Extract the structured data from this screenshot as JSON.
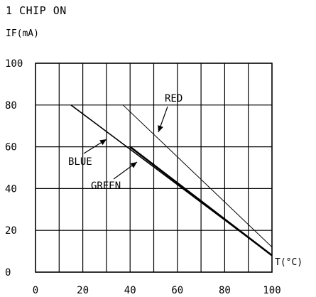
{
  "chart_data": {
    "type": "line",
    "title": "1 CHIP ON",
    "ylabel": "IF(mA)",
    "xlabel": "T(°C)",
    "xlim": [
      0,
      100
    ],
    "ylim": [
      0,
      100
    ],
    "x_ticks": [
      0,
      20,
      40,
      60,
      80,
      100
    ],
    "y_ticks": [
      0,
      20,
      40,
      60,
      80,
      100
    ],
    "x_tick_labels": [
      "0",
      "20",
      "40",
      "60",
      "80",
      "100"
    ],
    "y_tick_labels": [
      "0",
      "20",
      "40",
      "60",
      "80",
      "100"
    ],
    "grid": true,
    "series": [
      {
        "name": "RED",
        "x": [
          37,
          100
        ],
        "y": [
          80,
          12
        ],
        "stroke": "thin"
      },
      {
        "name": "BLUE",
        "x": [
          15,
          100
        ],
        "y": [
          80,
          8
        ],
        "stroke": "medium"
      },
      {
        "name": "GREEN",
        "x": [
          40,
          100
        ],
        "y": [
          60,
          8
        ],
        "stroke": "thick"
      }
    ],
    "annotations": [
      {
        "label": "RED"
      },
      {
        "label": "BLUE"
      },
      {
        "label": "GREEN"
      }
    ]
  }
}
